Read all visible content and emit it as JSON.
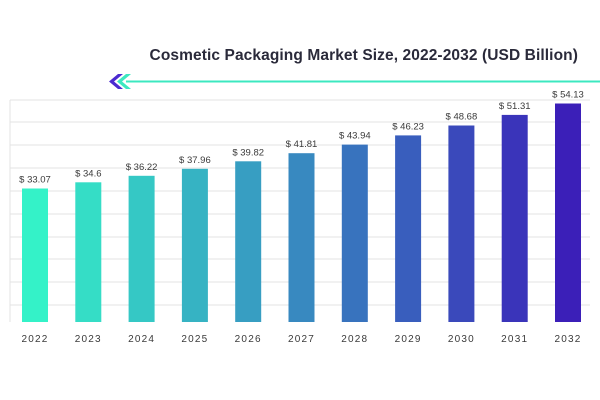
{
  "chart_data": {
    "type": "bar",
    "title": "Cosmetic Packaging Market Size, 2022-2032 (USD Billion)",
    "categories": [
      "2022",
      "2023",
      "2024",
      "2025",
      "2026",
      "2027",
      "2028",
      "2029",
      "2030",
      "2031",
      "2032"
    ],
    "values": [
      33.07,
      34.6,
      36.22,
      37.96,
      39.82,
      41.81,
      43.94,
      46.23,
      48.68,
      51.31,
      54.13
    ],
    "data_labels": [
      "$ 33.07",
      "$ 34.6",
      "$ 36.22",
      "$ 37.96",
      "$ 39.82",
      "$ 41.81",
      "$ 43.94",
      "$ 46.23",
      "$ 48.68",
      "$ 51.31",
      "$ 54.13"
    ],
    "xlabel": "",
    "ylabel": "",
    "grid": true,
    "gradient_colors": [
      "#34f2c8",
      "#3b1fb8"
    ],
    "accent_color": "#3ce8c0",
    "logo_colors": [
      "#4b2bd0",
      "#3ce8c0"
    ]
  }
}
